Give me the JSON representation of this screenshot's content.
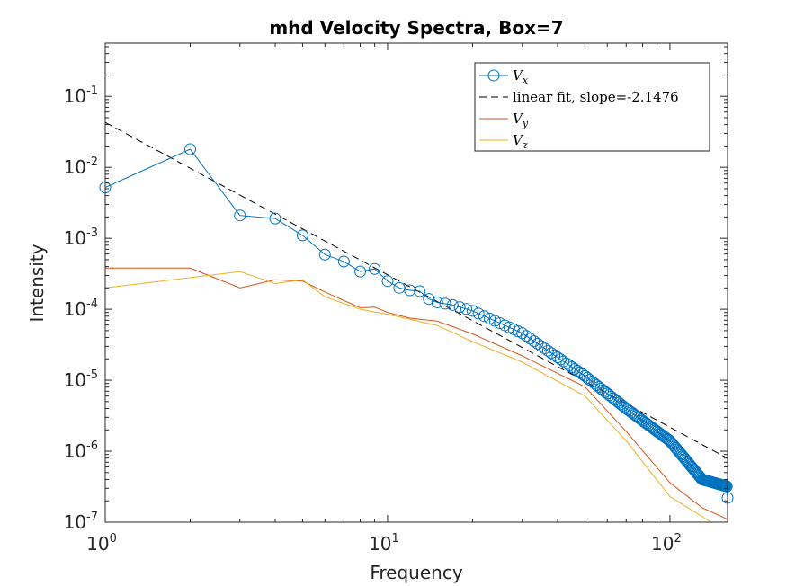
{
  "chart_data": {
    "type": "line",
    "title": "mhd Velocity Spectra, Box=7",
    "xlabel": "Frequency",
    "ylabel": "Intensity",
    "xscale": "log",
    "yscale": "log",
    "xlim": [
      1,
      160
    ],
    "ylim_log10": [
      -7,
      -0.25
    ],
    "xticks": [
      {
        "base": "10",
        "exp": "0",
        "value": 1
      },
      {
        "base": "10",
        "exp": "1",
        "value": 10
      },
      {
        "base": "10",
        "exp": "2",
        "value": 100
      }
    ],
    "yticks": [
      {
        "base": "10",
        "exp": "-7",
        "value": -7
      },
      {
        "base": "10",
        "exp": "-6",
        "value": -6
      },
      {
        "base": "10",
        "exp": "-5",
        "value": -5
      },
      {
        "base": "10",
        "exp": "-4",
        "value": -4
      },
      {
        "base": "10",
        "exp": "-3",
        "value": -3
      },
      {
        "base": "10",
        "exp": "-2",
        "value": -2
      },
      {
        "base": "10",
        "exp": "-1",
        "value": -1
      }
    ],
    "legend_position": "top-right",
    "series": [
      {
        "name": "V",
        "sub": "x",
        "color": "#0072BD",
        "marker": "circle",
        "x": [
          1,
          2,
          3,
          4,
          5,
          6,
          7,
          8,
          9,
          10,
          11,
          12,
          13,
          14,
          15,
          16,
          17,
          20,
          30,
          50,
          70,
          100,
          130,
          159,
          160
        ],
        "y": [
          0.0052,
          0.018,
          0.0021,
          0.0019,
          0.0011,
          0.00059,
          0.00047,
          0.00034,
          0.00037,
          0.00025,
          0.0002,
          0.000185,
          0.00018,
          0.00014,
          0.000125,
          0.00012,
          0.000115,
          9.5e-05,
          4.6e-05,
          1.15e-05,
          4e-06,
          1.4e-06,
          4e-07,
          3.2e-07,
          2.2e-07
        ]
      },
      {
        "name": "linear fit, slope=-2.1476",
        "color": "#000000",
        "dash": true,
        "intercept": 0.043,
        "slope": -2.1476
      },
      {
        "name": "V",
        "sub": "y",
        "color": "#D95319",
        "x": [
          1,
          2,
          3,
          4,
          5,
          6,
          8,
          9,
          10,
          12,
          15,
          20,
          30,
          50,
          70,
          100,
          130,
          160
        ],
        "y": [
          0.00038,
          0.00038,
          0.0002,
          0.00026,
          0.00025,
          0.000175,
          0.000105,
          0.000107,
          9e-05,
          7.5e-05,
          6.8e-05,
          4.5e-05,
          2.2e-05,
          8.1e-06,
          1.9e-06,
          3.6e-07,
          1.6e-07,
          1.1e-07
        ]
      },
      {
        "name": "V",
        "sub": "z",
        "color": "#EDB120",
        "x": [
          1,
          3,
          4,
          5,
          6,
          8,
          10,
          15,
          20,
          30,
          50,
          70,
          100,
          140,
          160
        ],
        "y": [
          0.0002,
          0.00034,
          0.00023,
          0.00026,
          0.00015,
          0.0001,
          8.5e-05,
          5.9e-05,
          3.5e-05,
          1.8e-05,
          6e-06,
          1.4e-06,
          2.3e-07,
          1e-07,
          9e-08
        ]
      }
    ]
  }
}
